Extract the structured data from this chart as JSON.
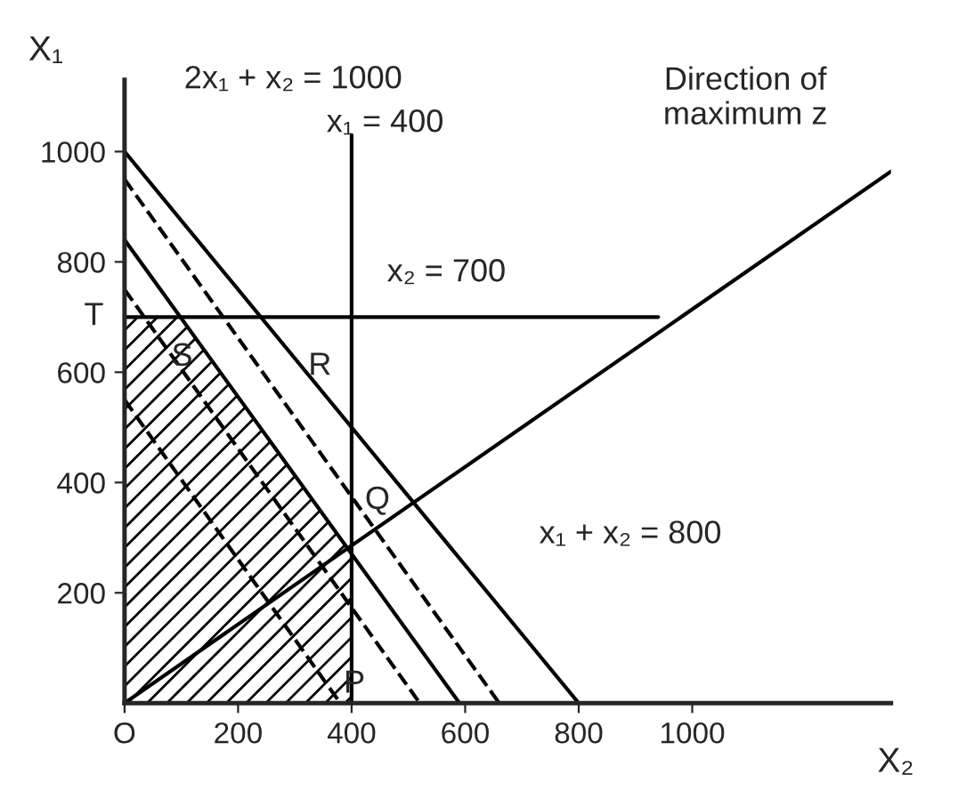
{
  "chart_data": {
    "type": "line",
    "xlabel": "X₂",
    "ylabel": "X₁",
    "xlim": [
      0,
      1350
    ],
    "ylim": [
      0,
      1130
    ],
    "xticks": [
      {
        "value": 0,
        "label": "O"
      },
      200,
      400,
      600,
      800,
      1000
    ],
    "yticks": [
      200,
      400,
      600,
      800,
      1000
    ],
    "grid": false,
    "legend": false,
    "series": [
      {
        "type": "area",
        "color": "#000000",
        "x": [
          0,
          99,
          400,
          400
        ],
        "values": [
          700,
          700,
          272,
          0
        ]
      },
      {
        "color": "#000000",
        "line_style": "solid",
        "x": [
          0,
          800
        ],
        "values": [
          1000,
          0
        ]
      },
      {
        "color": "#000000",
        "line_style": "solid",
        "x": [
          0,
          590
        ],
        "values": [
          840,
          0
        ]
      },
      {
        "color": "#000000",
        "line_style": "solid",
        "x": [
          400,
          400
        ],
        "values": [
          0,
          1030
        ]
      },
      {
        "color": "#000000",
        "line_style": "solid",
        "x": [
          0,
          940
        ],
        "values": [
          700,
          700
        ]
      },
      {
        "color": "#000000",
        "line_style": "solid",
        "x": [
          0,
          1350
        ],
        "values": [
          0,
          964
        ]
      },
      {
        "color": "#000000",
        "line_style": "dashed",
        "x": [
          0,
          660
        ],
        "values": [
          950,
          0
        ]
      },
      {
        "color": "#000000",
        "line_style": "dashed",
        "x": [
          0,
          520
        ],
        "values": [
          750,
          0
        ]
      },
      {
        "color": "#000000",
        "line_style": "dashed",
        "x": [
          0,
          380
        ],
        "values": [
          550,
          0
        ]
      }
    ],
    "annotations": [
      "2x₁ + x₂ = 1000",
      "x₁ = 400",
      "x₂ = 700",
      "x₁ + x₂ = 800",
      "Direction of\nmaximum z",
      "T",
      "S",
      "R",
      "Q",
      "P"
    ]
  }
}
